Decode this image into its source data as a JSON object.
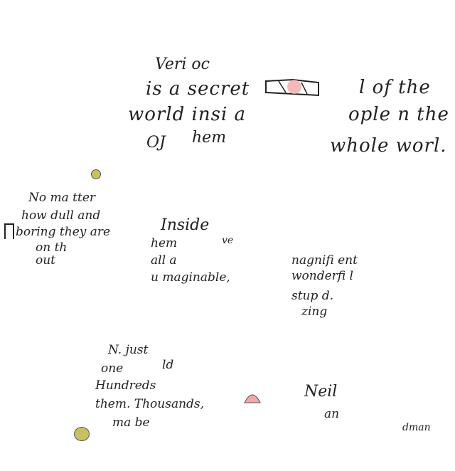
{
  "lines": [
    {
      "id": "l1",
      "text": "Veri oc"
    },
    {
      "id": "l2",
      "text": "is a secret"
    },
    {
      "id": "l3",
      "text": "world insi a"
    },
    {
      "id": "l4",
      "text": "OJ"
    },
    {
      "id": "l5",
      "text": "hem"
    },
    {
      "id": "l6",
      "text": "l of the"
    },
    {
      "id": "l7",
      "text": "ople n the"
    },
    {
      "id": "l8",
      "text": "whole worl."
    },
    {
      "id": "l9",
      "text": "No ma tter"
    },
    {
      "id": "l10",
      "text": "how dull and"
    },
    {
      "id": "l11",
      "text": "boring they are"
    },
    {
      "id": "l12",
      "text": "on th"
    },
    {
      "id": "l13",
      "text": "out"
    },
    {
      "id": "l14",
      "text": "Inside"
    },
    {
      "id": "l15",
      "text": "hem"
    },
    {
      "id": "l16",
      "text": "ve"
    },
    {
      "id": "l17",
      "text": "all a"
    },
    {
      "id": "l18",
      "text": "u maginable,"
    },
    {
      "id": "l19",
      "text": "nagnifi ent"
    },
    {
      "id": "l20",
      "text": "wonderfi l"
    },
    {
      "id": "l21",
      "text": "stup d."
    },
    {
      "id": "l22",
      "text": "zing"
    },
    {
      "id": "l23",
      "text": "N. just"
    },
    {
      "id": "l24",
      "text": "one"
    },
    {
      "id": "l25",
      "text": "ld"
    },
    {
      "id": "l26",
      "text": "Hundreds"
    },
    {
      "id": "l27",
      "text": "them. Thousands,"
    },
    {
      "id": "l28",
      "text": "ma be"
    },
    {
      "id": "l29",
      "text": "Neil"
    },
    {
      "id": "l30",
      "text": "an"
    },
    {
      "id": "l31",
      "text": "dman"
    }
  ],
  "colors": {
    "ink": "#222222",
    "pink": "#f2a7a7",
    "olive": "#c9c060"
  }
}
